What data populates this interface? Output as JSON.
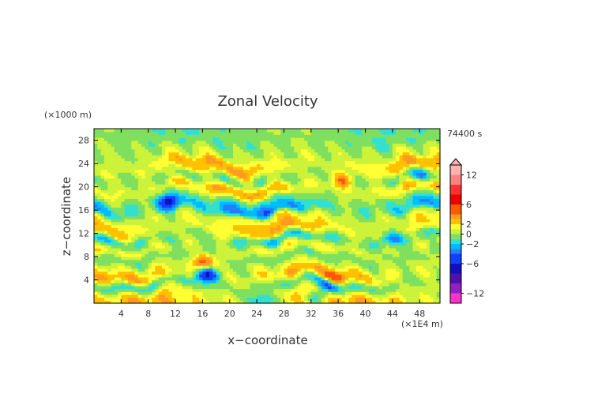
{
  "chart_data": {
    "type": "heatmap",
    "title": "Zonal Velocity",
    "xlabel": "x−coordinate",
    "ylabel": "z−coordinate",
    "x_unit": "(×1E4 m)",
    "y_unit": "(×1000 m)",
    "time_label": "74400 s",
    "xlim": [
      0,
      51
    ],
    "ylim": [
      0,
      30
    ],
    "x_ticks": [
      4,
      8,
      12,
      16,
      20,
      24,
      28,
      32,
      36,
      40,
      44,
      48
    ],
    "y_ticks": [
      4,
      8,
      12,
      16,
      20,
      24,
      28
    ],
    "x_tick_labels": [
      "4",
      "8",
      "12",
      "16",
      "20",
      "24",
      "28",
      "32",
      "36",
      "40",
      "44",
      "48"
    ],
    "y_tick_labels": [
      "4",
      "8",
      "12",
      "16",
      "20",
      "24",
      "28"
    ],
    "colorbar": {
      "range": [
        -14,
        14
      ],
      "labels": [
        {
          "value": 12,
          "text": "12"
        },
        {
          "value": 6,
          "text": "6"
        },
        {
          "value": 2,
          "text": "2"
        },
        {
          "value": 0,
          "text": "0"
        },
        {
          "value": -2,
          "text": "−2"
        },
        {
          "value": -6,
          "text": "−6"
        },
        {
          "value": -12,
          "text": "−12"
        }
      ],
      "bins": [
        {
          "from": 12,
          "to": 14,
          "color": "#ffb0b0"
        },
        {
          "from": 10,
          "to": 12,
          "color": "#ff8080"
        },
        {
          "from": 8,
          "to": 10,
          "color": "#ff3030"
        },
        {
          "from": 6,
          "to": 8,
          "color": "#ee0000"
        },
        {
          "from": 4,
          "to": 6,
          "color": "#ff5a00"
        },
        {
          "from": 3,
          "to": 4,
          "color": "#ff9a20"
        },
        {
          "from": 2,
          "to": 3,
          "color": "#ffc000"
        },
        {
          "from": 1,
          "to": 2,
          "color": "#ffff33"
        },
        {
          "from": 0,
          "to": 1,
          "color": "#ccf23a"
        },
        {
          "from": -1,
          "to": 0,
          "color": "#7fe060"
        },
        {
          "from": -2,
          "to": -1,
          "color": "#33e0d0"
        },
        {
          "from": -3,
          "to": -2,
          "color": "#00bbff"
        },
        {
          "from": -4,
          "to": -3,
          "color": "#2080ff"
        },
        {
          "from": -6,
          "to": -4,
          "color": "#1040ff"
        },
        {
          "from": -8,
          "to": -6,
          "color": "#1010c0"
        },
        {
          "from": -10,
          "to": -8,
          "color": "#5010b0"
        },
        {
          "from": -12,
          "to": -10,
          "color": "#9020c0"
        },
        {
          "from": -14,
          "to": -12,
          "color": "#ff33cc"
        }
      ]
    },
    "field_bands": [
      {
        "z": 27.5,
        "v": -0.8
      },
      {
        "z": 26,
        "v": 0.6
      },
      {
        "z": 23.5,
        "v": 2.6
      },
      {
        "z": 21.5,
        "v": -0.6
      },
      {
        "z": 19.5,
        "v": 3.2
      },
      {
        "z": 18,
        "v": -1.2
      },
      {
        "z": 16.5,
        "v": -3.4
      },
      {
        "z": 14.5,
        "v": 1.8
      },
      {
        "z": 12.8,
        "v": 3.0
      },
      {
        "z": 11,
        "v": -2.4
      },
      {
        "z": 9.5,
        "v": 2.2
      },
      {
        "z": 8,
        "v": -1.4
      },
      {
        "z": 6.5,
        "v": 1.0
      },
      {
        "z": 5,
        "v": 3.0
      },
      {
        "z": 3.2,
        "v": -1.6
      },
      {
        "z": 1.5,
        "v": 2.4
      }
    ],
    "features": [
      {
        "x": 16.5,
        "z": 5,
        "v": -7
      },
      {
        "x": 16.2,
        "z": 7,
        "v": 5
      },
      {
        "x": 34.5,
        "z": 3,
        "v": -5
      },
      {
        "x": 35.5,
        "z": 4,
        "v": 4
      },
      {
        "x": 11,
        "z": 17.5,
        "v": -6
      },
      {
        "x": 36.5,
        "z": 21,
        "v": 3.5
      },
      {
        "x": 25,
        "z": 0.6,
        "v": -3.5
      },
      {
        "x": 33,
        "z": 1,
        "v": -3.5
      },
      {
        "x": 44,
        "z": 11,
        "v": -3
      },
      {
        "x": 48,
        "z": 22,
        "v": -3
      }
    ]
  }
}
